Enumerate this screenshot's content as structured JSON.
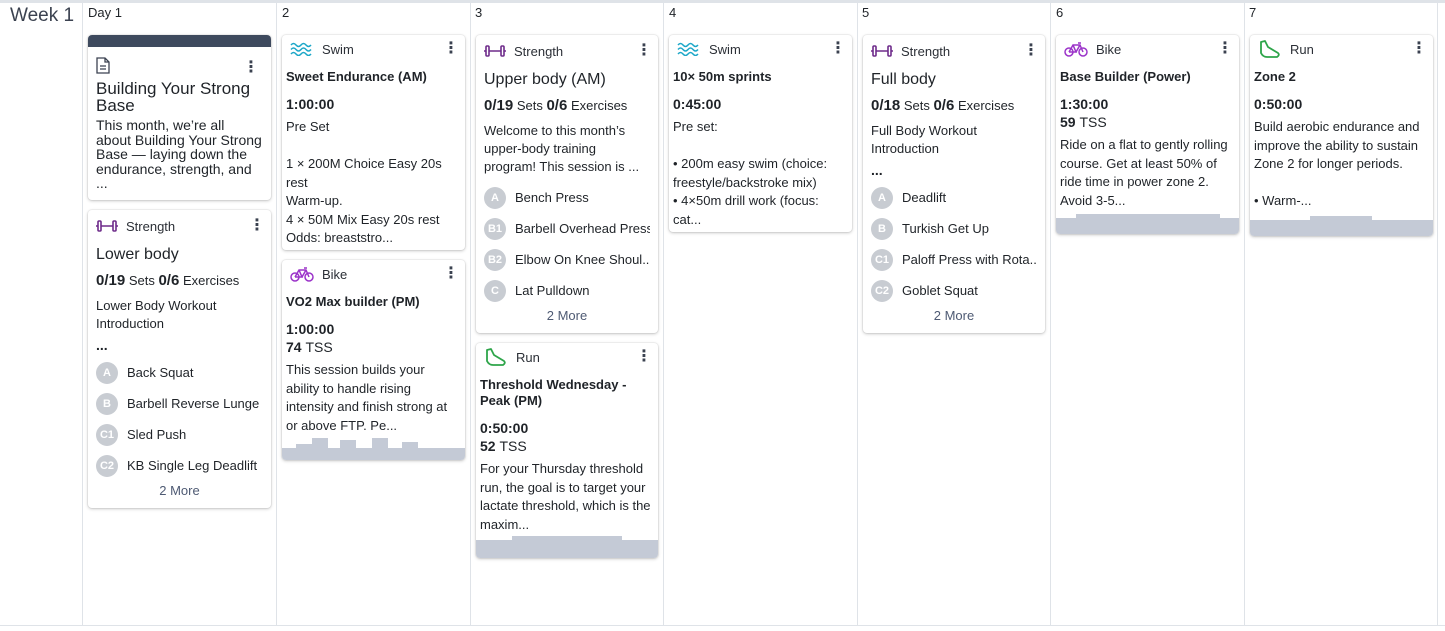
{
  "week": {
    "label": "Week 1"
  },
  "days": [
    {
      "num": "Day 1"
    },
    {
      "num": "2"
    },
    {
      "num": "3"
    },
    {
      "num": "4"
    },
    {
      "num": "5"
    },
    {
      "num": "6"
    },
    {
      "num": "7"
    }
  ],
  "colors": {
    "swim": "#1da7c8",
    "strength": "#6e2b8a",
    "bike": "#9b33c9",
    "run": "#2ea54a",
    "graph": "#c4cad6",
    "note_bar": "#3e4a5e"
  },
  "note": {
    "icon": "document-icon",
    "title": "Building Your Strong Base",
    "body": "This month, we’re all about Building Your Strong Base — laying down the endurance, strength, and ..."
  },
  "lower_body": {
    "sport": "Strength",
    "title": "Lower body",
    "sets": "0/19",
    "sets_label": "Sets",
    "exercises": "0/6",
    "exercises_label": "Exercises",
    "desc": "Lower Body Workout Introduction",
    "ellipsis": "...",
    "items": [
      {
        "badge": "A",
        "name": "Back Squat"
      },
      {
        "badge": "B",
        "name": "Barbell Reverse Lunge"
      },
      {
        "badge": "C1",
        "name": "Sled Push"
      },
      {
        "badge": "C2",
        "name": "KB Single Leg Deadlift"
      }
    ],
    "more": "2 More"
  },
  "swim1": {
    "sport": "Swim",
    "title": "Sweet Endurance (AM)",
    "duration": "1:00:00",
    "desc": "Pre Set\n\n1 × 200M Choice Easy 20s rest\n Warm-up.\n4 × 50M Mix Easy 20s rest\n Odds: breaststro..."
  },
  "bike1": {
    "sport": "Bike",
    "title": "VO2 Max builder (PM)",
    "duration": "1:00:00",
    "tss": "74",
    "tss_label": "TSS",
    "desc": "This session builds your ability to handle rising intensity and finish strong at or above FTP. Pe..."
  },
  "upper_body": {
    "sport": "Strength",
    "title": "Upper body (AM)",
    "sets": "0/19",
    "sets_label": "Sets",
    "exercises": "0/6",
    "exercises_label": "Exercises",
    "desc": "Welcome to this month’s upper-body training program! This session is ...",
    "items": [
      {
        "badge": "A",
        "name": "Bench Press"
      },
      {
        "badge": "B1",
        "name": "Barbell Overhead Press"
      },
      {
        "badge": "B2",
        "name": "Elbow On Knee Shoul..."
      },
      {
        "badge": "C",
        "name": "Lat Pulldown"
      }
    ],
    "more": "2 More"
  },
  "run1": {
    "sport": "Run",
    "title": "Threshold Wednesday - Peak (PM)",
    "duration": "0:50:00",
    "tss": "52",
    "tss_label": "TSS",
    "desc": "For your Thursday threshold run, the goal is to target your lactate threshold, which is the maxim..."
  },
  "swim2": {
    "sport": "Swim",
    "title": "10× 50m sprints",
    "duration": "0:45:00",
    "desc": "Pre set:\n\n • 200m easy swim (choice: freestyle/backstroke mix)\n • 4×50m drill work (focus: cat..."
  },
  "full_body": {
    "sport": "Strength",
    "title": "Full body",
    "sets": "0/18",
    "sets_label": "Sets",
    "exercises": "0/6",
    "exercises_label": "Exercises",
    "desc": "Full Body Workout Introduction",
    "ellipsis": "...",
    "items": [
      {
        "badge": "A",
        "name": "Deadlift"
      },
      {
        "badge": "B",
        "name": "Turkish Get Up"
      },
      {
        "badge": "C1",
        "name": "Paloff Press with Rota..."
      },
      {
        "badge": "C2",
        "name": "Goblet Squat"
      }
    ],
    "more": "2 More"
  },
  "bike2": {
    "sport": "Bike",
    "title": "Base Builder (Power)",
    "duration": "1:30:00",
    "tss": "59",
    "tss_label": "TSS",
    "desc": "Ride on a flat to gently rolling course. Get at least 50% of ride time in power zone 2. Avoid 3-5..."
  },
  "run2": {
    "sport": "Run",
    "title": "Zone 2",
    "duration": "0:50:00",
    "desc": "Build aerobic endurance and improve the ability to sustain Zone 2 for longer periods.\n\n • Warm-..."
  }
}
